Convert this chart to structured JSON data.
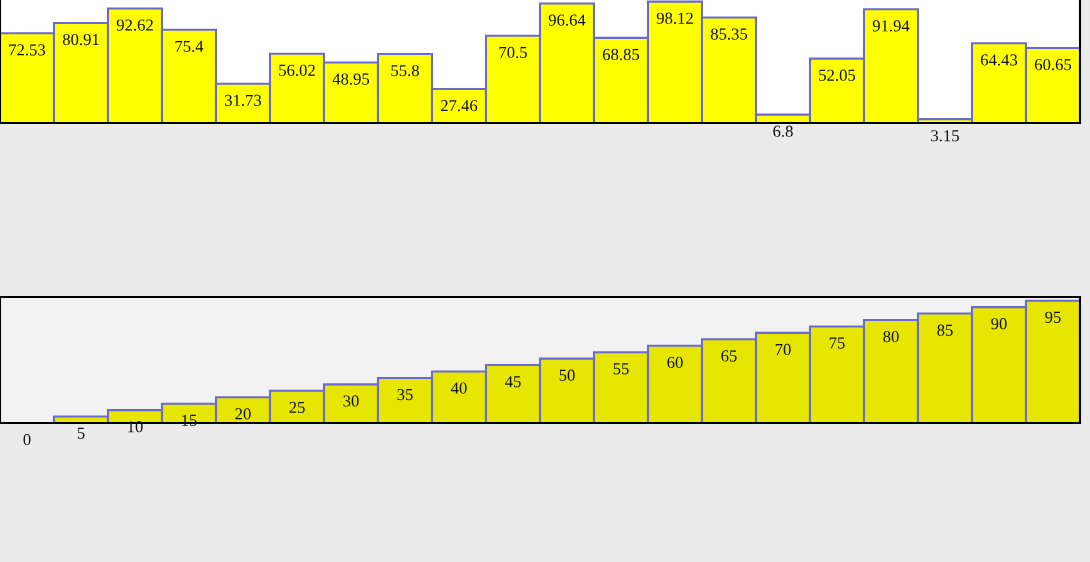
{
  "chart_data": [
    {
      "type": "bar",
      "categories": [
        null,
        null,
        null,
        null,
        null,
        null,
        null,
        null,
        null,
        null,
        null,
        null,
        null,
        null,
        null,
        null,
        null,
        null,
        null,
        null
      ],
      "values": [
        72.53,
        80.91,
        92.62,
        75.4,
        31.73,
        56.02,
        48.95,
        55.8,
        27.46,
        70.5,
        96.64,
        68.85,
        98.12,
        85.35,
        6.8,
        52.05,
        91.94,
        3.15,
        64.43,
        60.65
      ],
      "color": "#ffff00",
      "data_labels": true
    },
    {
      "type": "bar",
      "categories": [
        null,
        null,
        null,
        null,
        null,
        null,
        null,
        null,
        null,
        null,
        null,
        null,
        null,
        null,
        null,
        null,
        null,
        null,
        null,
        null
      ],
      "values": [
        0,
        5,
        10,
        15,
        20,
        25,
        30,
        35,
        40,
        45,
        50,
        55,
        60,
        65,
        70,
        75,
        80,
        85,
        90,
        95
      ],
      "color": "#e6e600",
      "data_labels": true
    }
  ]
}
